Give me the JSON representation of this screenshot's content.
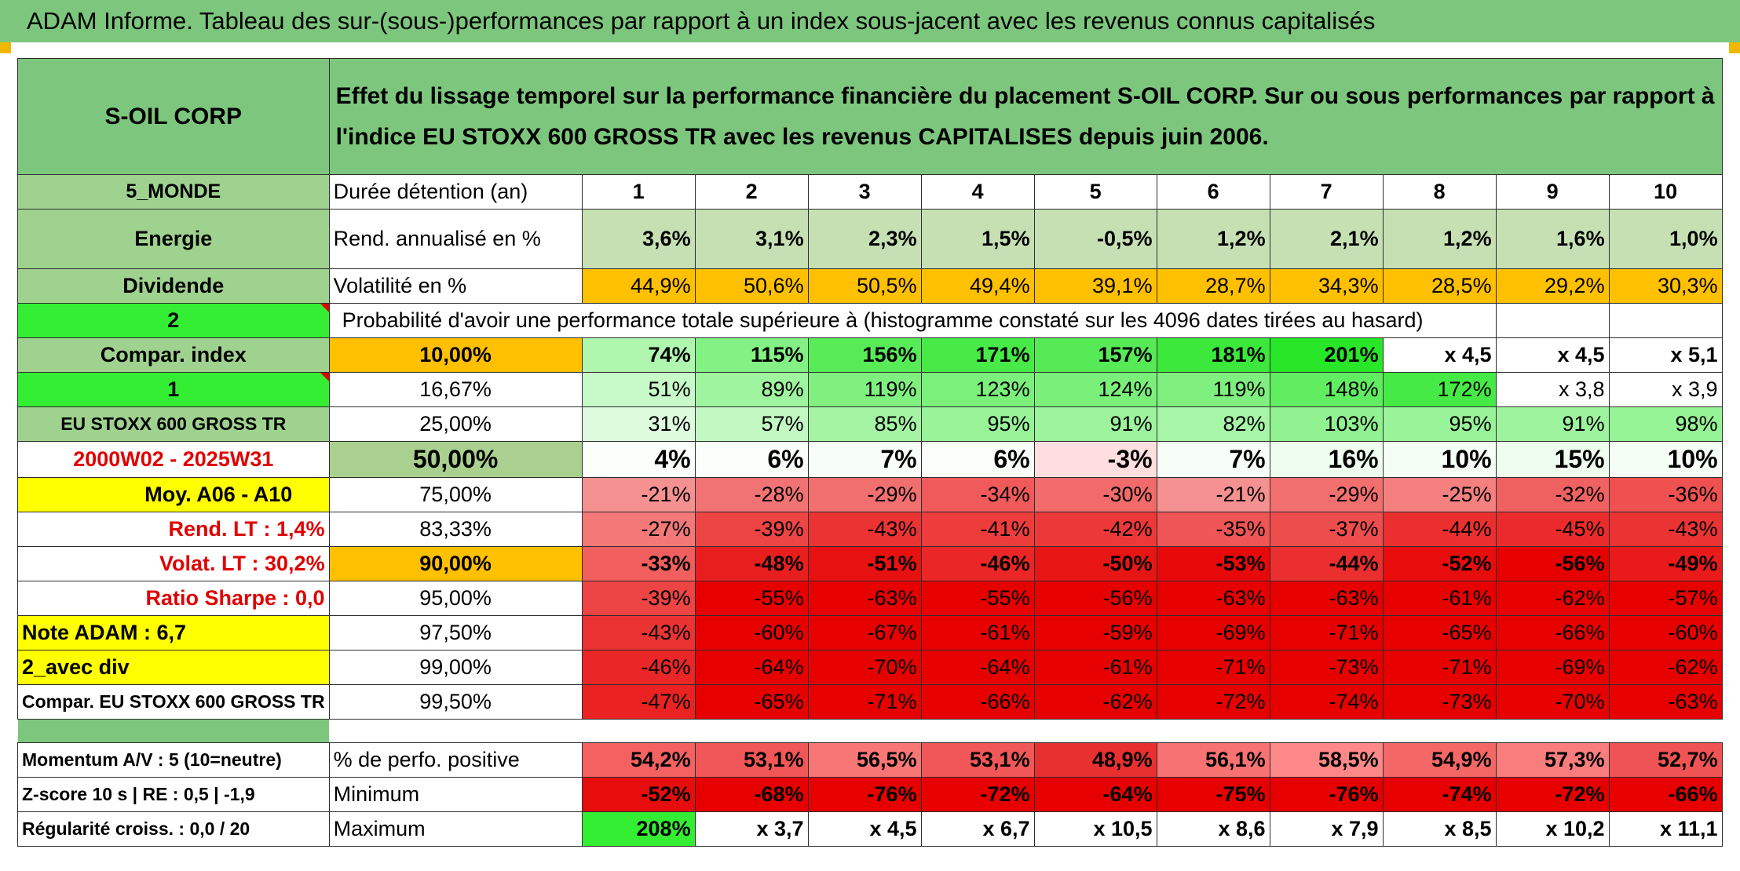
{
  "banner": "ADAM Informe. Tableau des sur-(sous-)performances par rapport à un index sous-jacent avec les revenus connus capitalisés",
  "title": {
    "name": "S-OIL CORP",
    "description": "Effet du lissage temporel sur la performance financière du placement S-OIL CORP. Sur ou sous performances par rapport à l'indice EU STOXX 600 GROSS TR avec les revenus CAPITALISES depuis juin 2006."
  },
  "labels": {
    "zone": "5_MONDE",
    "sector": "Energie",
    "type": "Dividende",
    "num2": "2",
    "compar_index": "Compar. index",
    "num1": "1",
    "index_name": "EU STOXX 600 GROSS TR",
    "period": "2000W02 - 2025W31",
    "moy": "Moy. A06 - A10",
    "rend_lt": "Rend. LT :   1,4%",
    "volat_lt": "Volat. LT :   30,2%",
    "sharpe": "Ratio Sharpe :    0,0",
    "note": "Note ADAM : 6,7",
    "avec_div": "2_avec div",
    "compar_full": "Compar. EU STOXX 600 GROSS TR",
    "momentum": "Momentum A/V : 5 (10=neutre)",
    "zscore": "Z-score 10 s | RE : 0,5 | -1,9",
    "regularite": "Régularité croiss. : 0,0 / 20"
  },
  "headers": {
    "duree": "Durée détention (an)",
    "years": [
      "1",
      "2",
      "3",
      "4",
      "5",
      "6",
      "7",
      "8",
      "9",
      "10"
    ],
    "rend": "Rend. annualisé en %",
    "volat": "Volatilité en %",
    "proba": "Probabilité d'avoir une performance totale supérieure à (histogramme constaté sur les 4096 dates tirées au hasard)",
    "pct_pos": "% de perfo. positive",
    "minimum": "Minimum",
    "maximum": "Maximum"
  },
  "rend_values": [
    "3,6%",
    "3,1%",
    "2,3%",
    "1,5%",
    "-0,5%",
    "1,2%",
    "2,1%",
    "1,2%",
    "1,6%",
    "1,0%"
  ],
  "volat_values": [
    "44,9%",
    "50,6%",
    "50,5%",
    "49,4%",
    "39,1%",
    "28,7%",
    "34,3%",
    "28,5%",
    "29,2%",
    "30,3%"
  ],
  "quantiles": [
    {
      "q": "10,00%",
      "values": [
        "74%",
        "115%",
        "156%",
        "171%",
        "157%",
        "181%",
        "201%",
        "x 4,5",
        "x 4,5",
        "x 5,1"
      ]
    },
    {
      "q": "16,67%",
      "values": [
        "51%",
        "89%",
        "119%",
        "123%",
        "124%",
        "119%",
        "148%",
        "172%",
        "x 3,8",
        "x 3,9"
      ]
    },
    {
      "q": "25,00%",
      "values": [
        "31%",
        "57%",
        "85%",
        "95%",
        "91%",
        "82%",
        "103%",
        "95%",
        "91%",
        "98%"
      ]
    },
    {
      "q": "50,00%",
      "values": [
        "4%",
        "6%",
        "7%",
        "6%",
        "-3%",
        "7%",
        "16%",
        "10%",
        "15%",
        "10%"
      ]
    },
    {
      "q": "75,00%",
      "values": [
        "-21%",
        "-28%",
        "-29%",
        "-34%",
        "-30%",
        "-21%",
        "-29%",
        "-25%",
        "-32%",
        "-36%"
      ]
    },
    {
      "q": "83,33%",
      "values": [
        "-27%",
        "-39%",
        "-43%",
        "-41%",
        "-42%",
        "-35%",
        "-37%",
        "-44%",
        "-45%",
        "-43%"
      ]
    },
    {
      "q": "90,00%",
      "values": [
        "-33%",
        "-48%",
        "-51%",
        "-46%",
        "-50%",
        "-53%",
        "-44%",
        "-52%",
        "-56%",
        "-49%"
      ]
    },
    {
      "q": "95,00%",
      "values": [
        "-39%",
        "-55%",
        "-63%",
        "-55%",
        "-56%",
        "-63%",
        "-63%",
        "-61%",
        "-62%",
        "-57%"
      ]
    },
    {
      "q": "97,50%",
      "values": [
        "-43%",
        "-60%",
        "-67%",
        "-61%",
        "-59%",
        "-69%",
        "-71%",
        "-65%",
        "-66%",
        "-60%"
      ]
    },
    {
      "q": "99,00%",
      "values": [
        "-46%",
        "-64%",
        "-70%",
        "-64%",
        "-61%",
        "-71%",
        "-73%",
        "-71%",
        "-69%",
        "-62%"
      ]
    },
    {
      "q": "99,50%",
      "values": [
        "-47%",
        "-65%",
        "-71%",
        "-66%",
        "-62%",
        "-72%",
        "-74%",
        "-73%",
        "-70%",
        "-63%"
      ]
    }
  ],
  "pct_pos_values": [
    "54,2%",
    "53,1%",
    "56,5%",
    "53,1%",
    "48,9%",
    "56,1%",
    "58,5%",
    "54,9%",
    "57,3%",
    "52,7%"
  ],
  "min_values": [
    "-52%",
    "-68%",
    "-76%",
    "-72%",
    "-64%",
    "-75%",
    "-76%",
    "-74%",
    "-72%",
    "-66%"
  ],
  "max_values": [
    "208%",
    "x 3,7",
    "x 4,5",
    "x 6,7",
    "x 10,5",
    "x 8,6",
    "x 7,9",
    "x 8,5",
    "x 10,2",
    "x 11,1"
  ],
  "colors": {
    "header_green": "#7dc67d",
    "label_green": "#9fd28f",
    "pale_green": "#c6e0b4",
    "yellow": "#ffff00",
    "orange": "#ffc000",
    "bright_green": "#33ee33",
    "label_red": "#e00000"
  }
}
